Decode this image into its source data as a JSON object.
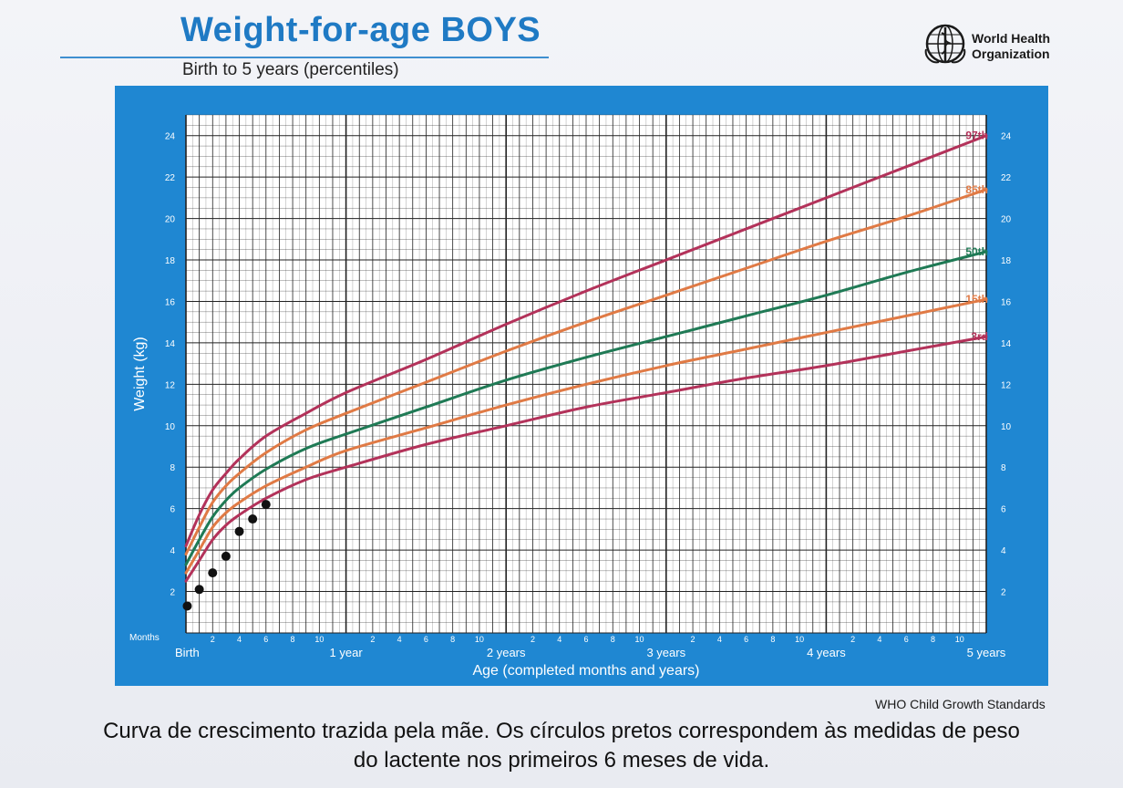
{
  "header": {
    "title": "Weight-for-age BOYS",
    "subtitle": "Birth to 5 years (percentiles)",
    "org_line1": "World Health",
    "org_line2": "Organization"
  },
  "footer": {
    "standards_label": "WHO Child Growth Standards",
    "caption_line1": "Curva de crescimento trazida pela mãe. Os círculos pretos correspondem às medidas de peso",
    "caption_line2": "do lactente nos primeiros 6 meses de vida."
  },
  "colors": {
    "panel": "#1f87d2",
    "grid": "#222222",
    "p97": "#b3325a",
    "p85": "#e07a45",
    "p50": "#1f7a55",
    "p15": "#e07a45",
    "p3": "#b3325a",
    "dots": "#111111"
  },
  "chart_data": {
    "type": "line",
    "title": "Weight-for-age BOYS",
    "subtitle": "Birth to 5 years (percentiles)",
    "xlabel": "Age (completed months and years)",
    "ylabel": "Weight (kg)",
    "xlim": [
      0,
      60
    ],
    "ylim": [
      0,
      25
    ],
    "grid": true,
    "months_label": "Months",
    "x_major_labels": [
      {
        "x": 0,
        "label": "Birth"
      },
      {
        "x": 12,
        "label": "1 year"
      },
      {
        "x": 24,
        "label": "2 years"
      },
      {
        "x": 36,
        "label": "3 years"
      },
      {
        "x": 48,
        "label": "4 years"
      },
      {
        "x": 60,
        "label": "5 years"
      }
    ],
    "x_minor_ticks": [
      2,
      4,
      6,
      8,
      10
    ],
    "y_ticks": [
      2,
      4,
      6,
      8,
      10,
      12,
      14,
      16,
      18,
      20,
      22,
      24
    ],
    "x": [
      0,
      1,
      2,
      3,
      4,
      6,
      9,
      12,
      18,
      24,
      30,
      36,
      42,
      48,
      54,
      60
    ],
    "series": [
      {
        "name": "97th",
        "color": "#b3325a",
        "values": [
          4.2,
          5.7,
          6.9,
          7.7,
          8.4,
          9.5,
          10.6,
          11.6,
          13.2,
          14.9,
          16.5,
          18.0,
          19.5,
          21.0,
          22.5,
          24.0
        ]
      },
      {
        "name": "85th",
        "color": "#e07a45",
        "values": [
          3.8,
          5.1,
          6.3,
          7.1,
          7.7,
          8.7,
          9.8,
          10.6,
          12.1,
          13.6,
          15.0,
          16.3,
          17.6,
          18.9,
          20.1,
          21.4
        ]
      },
      {
        "name": "50th",
        "color": "#1f7a55",
        "values": [
          3.3,
          4.5,
          5.6,
          6.4,
          7.0,
          7.9,
          8.9,
          9.6,
          10.9,
          12.2,
          13.3,
          14.3,
          15.3,
          16.3,
          17.4,
          18.4
        ]
      },
      {
        "name": "15th",
        "color": "#e07a45",
        "values": [
          2.9,
          4.0,
          5.1,
          5.8,
          6.3,
          7.1,
          8.0,
          8.8,
          9.9,
          11.0,
          12.0,
          12.9,
          13.7,
          14.5,
          15.3,
          16.1
        ]
      },
      {
        "name": "3rd",
        "color": "#b3325a",
        "values": [
          2.5,
          3.5,
          4.5,
          5.2,
          5.7,
          6.5,
          7.4,
          8.0,
          9.1,
          10.0,
          10.9,
          11.6,
          12.3,
          12.9,
          13.6,
          14.3
        ]
      }
    ],
    "measurements": {
      "x": [
        0.1,
        1,
        2,
        3,
        4,
        5,
        6
      ],
      "values": [
        1.3,
        2.1,
        2.9,
        3.7,
        4.9,
        5.5,
        6.2
      ]
    }
  }
}
